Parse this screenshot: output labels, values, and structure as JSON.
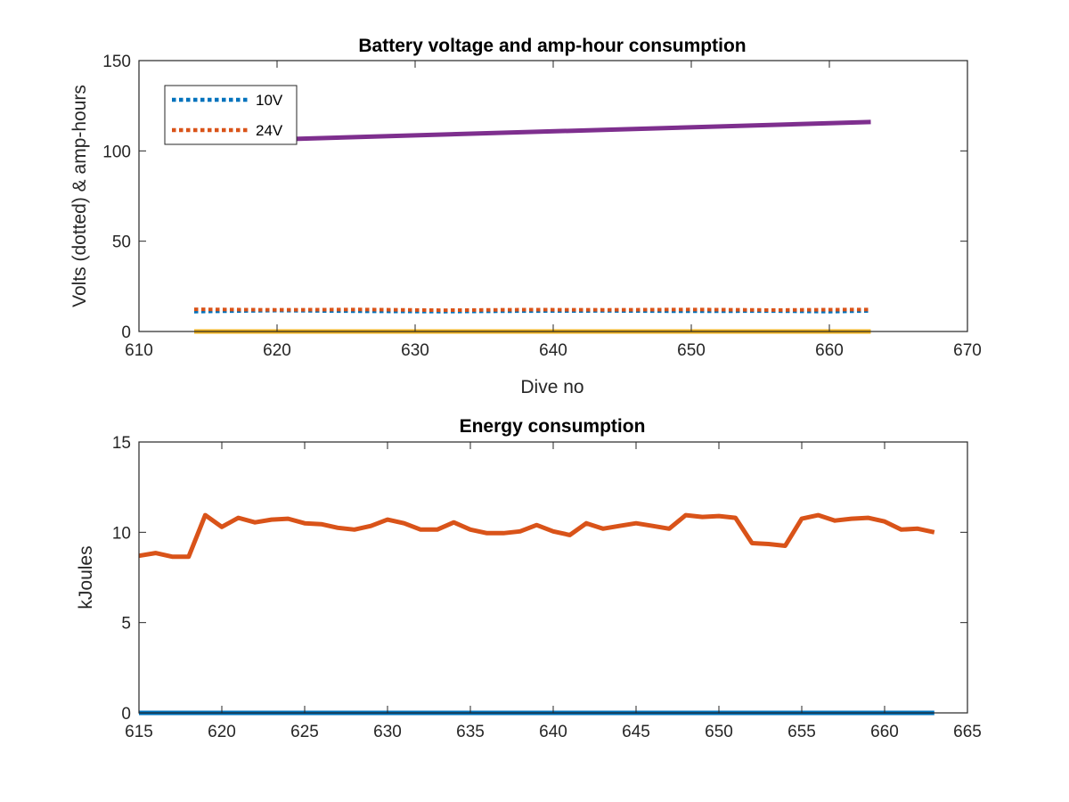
{
  "chart_data": [
    {
      "type": "line",
      "title": "Battery voltage and amp-hour consumption",
      "xlabel": "Dive no",
      "ylabel": "Volts (dotted) & amp-hours",
      "xlim": [
        610,
        670
      ],
      "ylim": [
        0,
        150
      ],
      "xticks": [
        610,
        620,
        630,
        640,
        650,
        660,
        670
      ],
      "yticks": [
        0,
        50,
        100,
        150
      ],
      "legend": {
        "placement": "top-left",
        "entries": [
          "10V",
          "24V"
        ]
      },
      "grid": false,
      "series": [
        {
          "name": "10V",
          "style": "dotted",
          "color": "#0072BD",
          "x": [
            614,
            620,
            626,
            632,
            638,
            644,
            650,
            656,
            660,
            663
          ],
          "y": [
            11.0,
            11.6,
            11.2,
            11.0,
            11.3,
            11.4,
            11.2,
            11.3,
            11.0,
            11.4
          ]
        },
        {
          "name": "24V",
          "style": "dotted",
          "color": "#D95319",
          "x": [
            614,
            620,
            626,
            632,
            638,
            644,
            650,
            656,
            660,
            663
          ],
          "y": [
            12.3,
            12.0,
            12.2,
            11.8,
            12.1,
            12.0,
            12.2,
            11.9,
            12.1,
            12.2
          ]
        },
        {
          "style": "solid",
          "color": "#7E2F8E",
          "x": [
            614,
            663
          ],
          "y": [
            105,
            116
          ]
        },
        {
          "style": "solid",
          "color": "#EDB120",
          "x": [
            614,
            663
          ],
          "y": [
            0,
            0
          ]
        }
      ]
    },
    {
      "type": "line",
      "title": "Energy consumption",
      "xlabel": "",
      "ylabel": "kJoules",
      "xlim": [
        615,
        665
      ],
      "ylim": [
        0,
        15
      ],
      "xticks": [
        615,
        620,
        625,
        630,
        635,
        640,
        645,
        650,
        655,
        660,
        665
      ],
      "yticks": [
        0,
        5,
        10,
        15
      ],
      "grid": false,
      "series": [
        {
          "style": "solid",
          "color": "#0072BD",
          "x": [
            615,
            663
          ],
          "y": [
            0,
            0
          ]
        },
        {
          "style": "solid",
          "color": "#D95319",
          "x": [
            615,
            616,
            617,
            618,
            619,
            620,
            621,
            622,
            623,
            624,
            625,
            626,
            627,
            628,
            629,
            630,
            631,
            632,
            633,
            634,
            635,
            636,
            637,
            638,
            639,
            640,
            641,
            642,
            643,
            644,
            645,
            646,
            647,
            648,
            649,
            650,
            651,
            652,
            653,
            654,
            655,
            656,
            657,
            658,
            659,
            660,
            661,
            662,
            663
          ],
          "y": [
            8.7,
            8.85,
            8.65,
            8.65,
            10.95,
            10.3,
            10.8,
            10.55,
            10.7,
            10.75,
            10.5,
            10.45,
            10.25,
            10.15,
            10.35,
            10.7,
            10.5,
            10.15,
            10.15,
            10.55,
            10.15,
            9.95,
            9.95,
            10.05,
            10.4,
            10.05,
            9.85,
            10.5,
            10.2,
            10.35,
            10.5,
            10.35,
            10.2,
            10.95,
            10.85,
            10.9,
            10.8,
            9.4,
            9.35,
            9.25,
            10.75,
            10.95,
            10.65,
            10.75,
            10.8,
            10.6,
            10.15,
            10.2,
            10.0
          ]
        }
      ]
    }
  ]
}
